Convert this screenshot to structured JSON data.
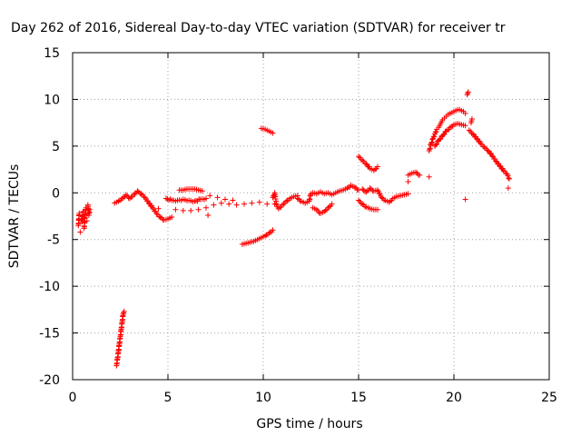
{
  "chart_data": {
    "type": "scatter",
    "title": "Day 262 of 2016, Sidereal Day-to-day VTEC variation (SDTVAR) for receiver tr",
    "xlabel": "GPS time / hours",
    "ylabel": "SDTVAR / TECUs",
    "xlim": [
      0,
      25
    ],
    "ylim": [
      -20,
      15
    ],
    "xticks": [
      0,
      5,
      10,
      15,
      20,
      25
    ],
    "yticks": [
      -20,
      -15,
      -10,
      -5,
      0,
      5,
      10,
      15
    ],
    "xtick_labels": [
      "0",
      "5",
      "10",
      "15",
      "20",
      "25"
    ],
    "ytick_labels": [
      "-20",
      "-15",
      "-10",
      "-5",
      "0",
      "5",
      "10",
      "15"
    ],
    "grid": true,
    "marker": "plus",
    "color": "#ff0000",
    "series": [
      {
        "values": [
          [
            0.3,
            -3.5
          ],
          [
            0.35,
            -2.2
          ],
          [
            0.4,
            -4.2
          ],
          [
            0.45,
            -2.8
          ],
          [
            0.5,
            -3.1
          ],
          [
            0.55,
            -2.0
          ],
          [
            0.6,
            -3.8
          ],
          [
            0.65,
            -2.5
          ],
          [
            0.7,
            -1.6
          ],
          [
            0.75,
            -3.0
          ],
          [
            0.8,
            -1.3
          ],
          [
            0.85,
            -2.4
          ],
          [
            0.9,
            -1.8
          ],
          [
            2.3,
            -18.5
          ],
          [
            2.35,
            -17.8
          ],
          [
            2.4,
            -17.0
          ],
          [
            2.45,
            -16.2
          ],
          [
            2.5,
            -15.4
          ],
          [
            2.55,
            -14.6
          ],
          [
            2.6,
            -13.8
          ],
          [
            2.65,
            -13.0
          ],
          [
            2.7,
            -12.7
          ],
          [
            2.2,
            -1.1
          ],
          [
            2.4,
            -0.9
          ],
          [
            2.6,
            -0.6
          ],
          [
            2.8,
            -0.2
          ],
          [
            3.0,
            -0.6
          ],
          [
            3.2,
            -0.2
          ],
          [
            3.4,
            0.2
          ],
          [
            3.6,
            -0.1
          ],
          [
            3.8,
            -0.5
          ],
          [
            4.0,
            -1.1
          ],
          [
            4.2,
            -1.6
          ],
          [
            4.4,
            -2.2
          ],
          [
            4.6,
            -2.6
          ],
          [
            4.8,
            -2.9
          ],
          [
            5.0,
            -2.8
          ],
          [
            5.2,
            -2.6
          ],
          [
            4.5,
            -1.7
          ],
          [
            4.9,
            -0.6
          ],
          [
            5.2,
            -0.8
          ],
          [
            5.5,
            -0.8
          ],
          [
            5.8,
            -0.7
          ],
          [
            6.1,
            -0.8
          ],
          [
            6.4,
            -0.9
          ],
          [
            6.7,
            -0.7
          ],
          [
            7.0,
            -0.6
          ],
          [
            5.4,
            -1.8
          ],
          [
            5.8,
            -1.9
          ],
          [
            6.2,
            -1.9
          ],
          [
            6.6,
            -1.8
          ],
          [
            7.0,
            -1.6
          ],
          [
            7.4,
            -1.3
          ],
          [
            7.8,
            -1.1
          ],
          [
            8.2,
            -1.2
          ],
          [
            8.6,
            -1.3
          ],
          [
            9.0,
            -1.2
          ],
          [
            9.4,
            -1.1
          ],
          [
            9.8,
            -1.0
          ],
          [
            10.2,
            -1.2
          ],
          [
            10.6,
            -1.2
          ],
          [
            5.6,
            0.3
          ],
          [
            5.8,
            0.3
          ],
          [
            6.0,
            0.4
          ],
          [
            6.2,
            0.4
          ],
          [
            6.4,
            0.4
          ],
          [
            6.6,
            0.3
          ],
          [
            6.8,
            0.2
          ],
          [
            7.1,
            -2.4
          ],
          [
            7.2,
            -0.3
          ],
          [
            7.6,
            -0.5
          ],
          [
            8.0,
            -0.7
          ],
          [
            8.4,
            -0.8
          ],
          [
            8.9,
            -5.5
          ],
          [
            9.1,
            -5.4
          ],
          [
            9.3,
            -5.3
          ],
          [
            9.5,
            -5.2
          ],
          [
            9.7,
            -5.0
          ],
          [
            9.9,
            -4.8
          ],
          [
            10.1,
            -4.6
          ],
          [
            10.3,
            -4.3
          ],
          [
            10.5,
            -4.0
          ],
          [
            9.9,
            6.9
          ],
          [
            10.1,
            6.8
          ],
          [
            10.3,
            6.6
          ],
          [
            10.5,
            6.4
          ],
          [
            10.5,
            -0.5
          ],
          [
            10.6,
            0.0
          ],
          [
            10.7,
            -1.3
          ],
          [
            10.8,
            -1.7
          ],
          [
            11.0,
            -1.3
          ],
          [
            11.2,
            -0.9
          ],
          [
            11.4,
            -0.6
          ],
          [
            11.6,
            -0.4
          ],
          [
            11.8,
            -0.3
          ],
          [
            11.8,
            -0.6
          ],
          [
            12.0,
            -0.9
          ],
          [
            12.2,
            -1.1
          ],
          [
            12.4,
            -0.9
          ],
          [
            12.5,
            -0.1
          ],
          [
            12.6,
            -1.6
          ],
          [
            12.8,
            -1.8
          ],
          [
            13.0,
            -2.2
          ],
          [
            13.2,
            -2.0
          ],
          [
            13.4,
            -1.6
          ],
          [
            13.6,
            -1.2
          ],
          [
            12.6,
            0.0
          ],
          [
            12.8,
            -0.1
          ],
          [
            13.0,
            0.1
          ],
          [
            13.2,
            -0.1
          ],
          [
            13.4,
            0.0
          ],
          [
            13.6,
            -0.2
          ],
          [
            13.8,
            0.0
          ],
          [
            14.0,
            0.2
          ],
          [
            14.2,
            0.3
          ],
          [
            14.4,
            0.5
          ],
          [
            14.6,
            0.8
          ],
          [
            14.8,
            0.6
          ],
          [
            15.0,
            0.3
          ],
          [
            15.0,
            -0.8
          ],
          [
            15.2,
            -1.2
          ],
          [
            15.4,
            -1.5
          ],
          [
            15.6,
            -1.7
          ],
          [
            15.8,
            -1.8
          ],
          [
            16.0,
            -1.8
          ],
          [
            15.0,
            3.9
          ],
          [
            15.2,
            3.5
          ],
          [
            15.4,
            3.1
          ],
          [
            15.6,
            2.6
          ],
          [
            15.8,
            2.4
          ],
          [
            16.0,
            2.8
          ],
          [
            15.2,
            0.4
          ],
          [
            15.4,
            0.1
          ],
          [
            15.6,
            0.5
          ],
          [
            15.8,
            0.2
          ],
          [
            16.0,
            0.3
          ],
          [
            16.2,
            -0.5
          ],
          [
            16.4,
            -0.8
          ],
          [
            16.6,
            -1.0
          ],
          [
            16.8,
            -0.6
          ],
          [
            17.0,
            -0.4
          ],
          [
            17.2,
            -0.3
          ],
          [
            17.4,
            -0.2
          ],
          [
            17.6,
            -0.1
          ],
          [
            17.6,
            1.9
          ],
          [
            17.8,
            2.1
          ],
          [
            18.0,
            2.2
          ],
          [
            18.2,
            1.9
          ],
          [
            17.6,
            1.2
          ],
          [
            18.7,
            1.7
          ],
          [
            18.7,
            4.5
          ],
          [
            18.8,
            5.2
          ],
          [
            18.9,
            5.8
          ],
          [
            19.0,
            6.3
          ],
          [
            19.1,
            6.8
          ],
          [
            19.2,
            7.0
          ],
          [
            19.3,
            7.4
          ],
          [
            19.4,
            7.8
          ],
          [
            19.5,
            8.0
          ],
          [
            19.6,
            8.2
          ],
          [
            19.7,
            8.4
          ],
          [
            19.8,
            8.5
          ],
          [
            19.9,
            8.6
          ],
          [
            20.0,
            8.7
          ],
          [
            20.1,
            8.8
          ],
          [
            20.2,
            8.9
          ],
          [
            20.3,
            8.9
          ],
          [
            20.4,
            8.8
          ],
          [
            20.5,
            8.7
          ],
          [
            20.6,
            8.5
          ],
          [
            19.0,
            5.0
          ],
          [
            19.2,
            5.6
          ],
          [
            19.4,
            6.1
          ],
          [
            19.6,
            6.6
          ],
          [
            19.8,
            7.0
          ],
          [
            20.0,
            7.3
          ],
          [
            20.2,
            7.4
          ],
          [
            20.4,
            7.3
          ],
          [
            20.6,
            7.2
          ],
          [
            20.7,
            10.5
          ],
          [
            20.75,
            10.8
          ],
          [
            20.6,
            -0.7
          ],
          [
            20.9,
            7.5
          ],
          [
            20.95,
            7.9
          ],
          [
            20.8,
            6.7
          ],
          [
            21.0,
            6.3
          ],
          [
            21.2,
            5.8
          ],
          [
            21.4,
            5.3
          ],
          [
            21.6,
            4.9
          ],
          [
            21.8,
            4.5
          ],
          [
            22.0,
            4.0
          ],
          [
            22.2,
            3.4
          ],
          [
            22.4,
            2.9
          ],
          [
            22.6,
            2.4
          ],
          [
            22.8,
            2.0
          ],
          [
            22.9,
            1.5
          ],
          [
            22.85,
            0.5
          ]
        ]
      }
    ]
  }
}
